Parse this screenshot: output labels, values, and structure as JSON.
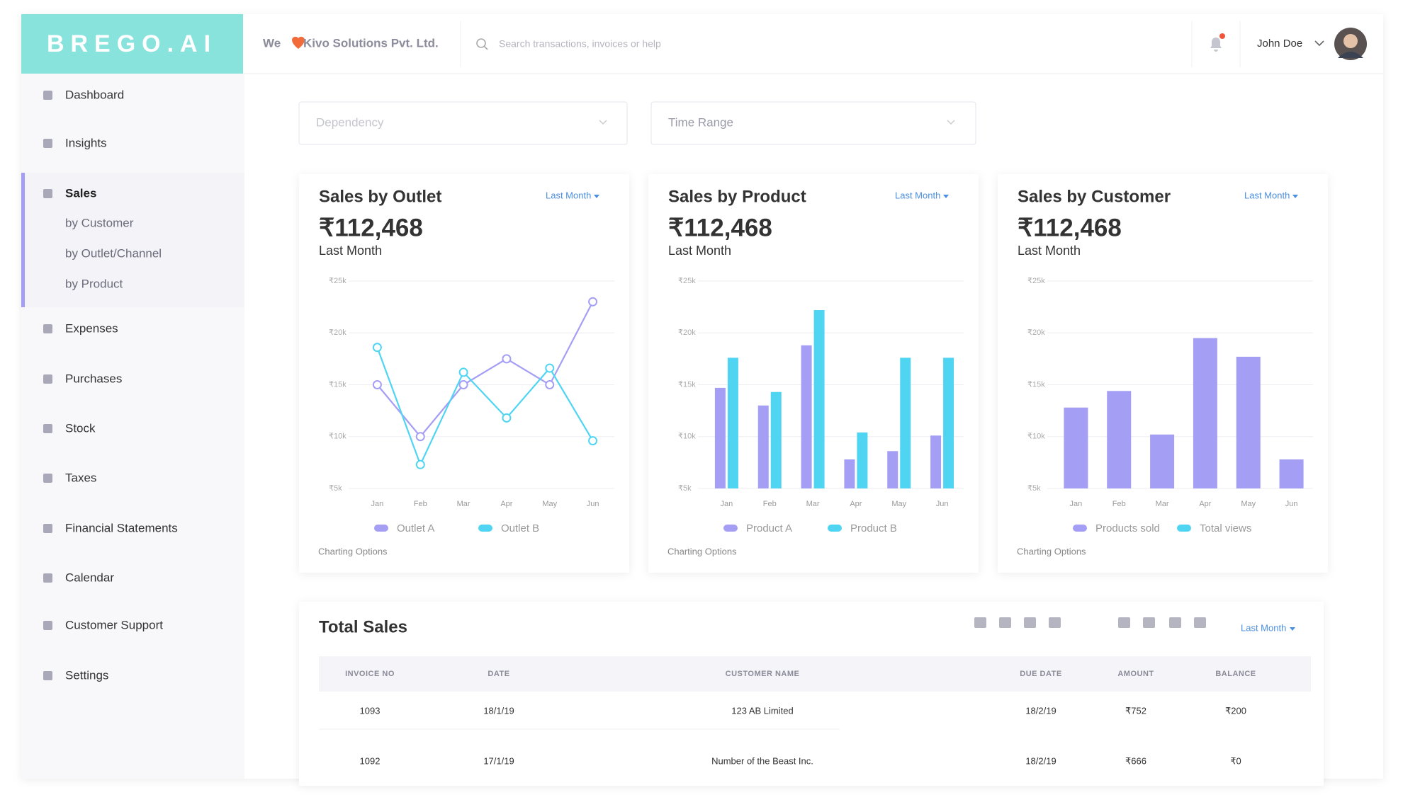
{
  "brand": "BREGO.AI",
  "header": {
    "greeting": "We",
    "company": "Kivo Solutions Pvt. Ltd.",
    "search_placeholder": "Search transactions, invoices or help",
    "user": "John Doe"
  },
  "sidebar": [
    "Dashboard",
    "Insights",
    "Sales",
    "Expenses",
    "Purchases",
    "Stock",
    "Taxes",
    "Financial Statements",
    "Calendar",
    "Customer Support",
    "Settings"
  ],
  "sales_menu": [
    "by Customer",
    "by Outlet/Channel",
    "by Product"
  ],
  "filters": [
    "Dependency",
    "Time Range"
  ],
  "chart_data": [
    {
      "type": "line",
      "title": "Sales by Outlet",
      "amount": "₹112,468",
      "period": "Last Month",
      "range_menu": "Last Month",
      "categories": [
        "Jan",
        "Feb",
        "Mar",
        "Apr",
        "May",
        "Jun"
      ],
      "ylim": [
        5000,
        25000
      ],
      "yticks": [
        {
          "value": 25000,
          "label": "₹25k"
        },
        {
          "value": 20000,
          "label": "₹20k"
        },
        {
          "value": 15000,
          "label": "₹15k"
        },
        {
          "value": 10000,
          "label": "₹10k"
        },
        {
          "value": 5000,
          "label": "₹5k"
        }
      ],
      "grid": true,
      "series": [
        {
          "name": "Outlet A",
          "color": "#a59ef5",
          "values": [
            15000,
            10000,
            15000,
            17500,
            15000,
            23000
          ]
        },
        {
          "name": "Outlet B",
          "color": "#4fd5f2",
          "values": [
            18600,
            7300,
            16200,
            11800,
            16600,
            9600
          ]
        }
      ],
      "footer": "Charting Options"
    },
    {
      "type": "bar",
      "title": "Sales by Product",
      "amount": "₹112,468",
      "period": "Last Month",
      "range_menu": "Last Month",
      "categories": [
        "Jan",
        "Feb",
        "Mar",
        "Apr",
        "May",
        "Jun"
      ],
      "ylim": [
        5000,
        25000
      ],
      "yticks": [
        {
          "value": 25000,
          "label": "₹25k"
        },
        {
          "value": 20000,
          "label": "₹20k"
        },
        {
          "value": 15000,
          "label": "₹15k"
        },
        {
          "value": 10000,
          "label": "₹10k"
        },
        {
          "value": 5000,
          "label": "₹5k"
        }
      ],
      "grid": true,
      "series": [
        {
          "name": "Product A",
          "color": "#a59ef5",
          "values": [
            14700,
            13000,
            18800,
            7800,
            8600,
            10100
          ]
        },
        {
          "name": "Product B",
          "color": "#4fd5f2",
          "values": [
            17600,
            14300,
            22200,
            10400,
            17600,
            17600
          ]
        }
      ],
      "footer": "Charting Options"
    },
    {
      "type": "bar",
      "title": "Sales by Customer",
      "amount": "₹112,468",
      "period": "Last Month",
      "range_menu": "Last Month",
      "categories": [
        "Jan",
        "Feb",
        "Mar",
        "Apr",
        "May",
        "Jun"
      ],
      "ylim": [
        5000,
        25000
      ],
      "yticks": [
        {
          "value": 25000,
          "label": "₹25k"
        },
        {
          "value": 20000,
          "label": "₹20k"
        },
        {
          "value": 15000,
          "label": "₹15k"
        },
        {
          "value": 10000,
          "label": "₹10k"
        },
        {
          "value": 5000,
          "label": "₹5k"
        }
      ],
      "grid": true,
      "series": [
        {
          "name": "Products sold",
          "color": "#a59ef5",
          "values": [
            12800,
            14400,
            10200,
            19500,
            17700,
            7800
          ]
        },
        {
          "name": "Total views",
          "color": "#4fd5f2",
          "values": [
            null,
            null,
            null,
            null,
            null,
            null
          ]
        }
      ],
      "footer": "Charting Options"
    }
  ],
  "total_sales": {
    "title": "Total Sales",
    "range_menu": "Last Month",
    "columns": [
      "INVOICE NO",
      "DATE",
      "CUSTOMER NAME",
      "DUE DATE",
      "AMOUNT",
      "BALANCE"
    ],
    "rows": [
      [
        "1093",
        "18/1/19",
        "123 AB Limited",
        "18/2/19",
        "₹752",
        "₹200"
      ],
      [
        "1092",
        "17/1/19",
        "Number of the Beast Inc.",
        "18/2/19",
        "₹666",
        "₹0"
      ]
    ]
  }
}
